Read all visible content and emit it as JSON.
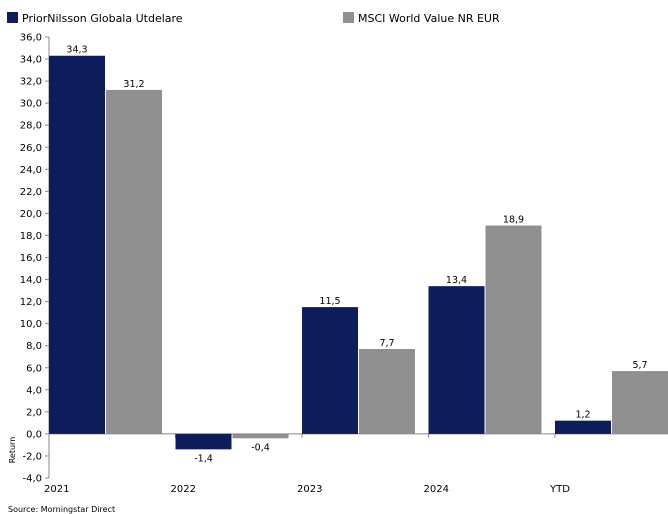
{
  "chart_data": {
    "type": "bar",
    "categories": [
      "2021",
      "2022",
      "2023",
      "2024",
      "YTD"
    ],
    "series": [
      {
        "name": "PriorNilsson Globala Utdelare",
        "color": "#0d1c5b",
        "values": [
          34.3,
          -1.4,
          11.5,
          13.4,
          1.2
        ]
      },
      {
        "name": "MSCI World Value NR EUR",
        "color": "#8f8f8f",
        "values": [
          31.2,
          -0.4,
          7.7,
          18.9,
          5.7
        ]
      }
    ],
    "value_labels": [
      [
        "34,3",
        "-1,4",
        "11,5",
        "13,4",
        "1,2"
      ],
      [
        "31,2",
        "-0,4",
        "7,7",
        "18,9",
        "5,7"
      ]
    ],
    "ylim": [
      -4.0,
      36.0
    ],
    "ytick_step": 2,
    "ytick_labels": [
      "-4,0",
      "-2,0",
      "0,0",
      "2,0",
      "4,0",
      "6,0",
      "8,0",
      "10,0",
      "12,0",
      "14,0",
      "16,0",
      "18,0",
      "20,0",
      "22,0",
      "24,0",
      "26,0",
      "28,0",
      "30,0",
      "32,0",
      "34,0",
      "36,0"
    ],
    "ylabel": "Return",
    "xlabel": "",
    "title": "",
    "grid": false,
    "legend_position": "top"
  },
  "source": "Source: Morningstar Direct"
}
